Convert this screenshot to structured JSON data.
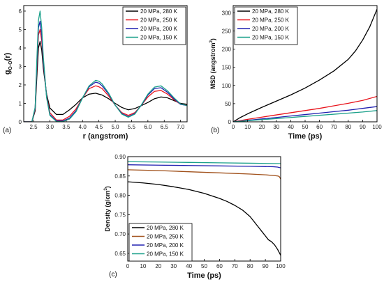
{
  "chart_data": [
    {
      "type": "line",
      "panel_label": "(a)",
      "xlabel": "r (angstrom)",
      "ylabel_main": "g",
      "ylabel_sub": "O-O",
      "ylabel_tail": "(r)",
      "xlim": [
        2.2,
        7.2
      ],
      "ylim": [
        0,
        6.3
      ],
      "xticks": [
        "2.5",
        "3.0",
        "3.5",
        "4.0",
        "4.5",
        "5.0",
        "5.5",
        "6.0",
        "6.5",
        "7.0"
      ],
      "yticks": [
        "0",
        "1",
        "2",
        "3",
        "4",
        "5",
        "6"
      ],
      "legend": "top-right",
      "series": [
        {
          "name": "20 MPa, 280 K",
          "color": "#000000",
          "x": [
            2.2,
            2.45,
            2.55,
            2.6,
            2.65,
            2.7,
            2.75,
            2.8,
            2.9,
            3.0,
            3.2,
            3.4,
            3.6,
            3.8,
            4.0,
            4.2,
            4.4,
            4.5,
            4.6,
            4.8,
            5.0,
            5.2,
            5.4,
            5.6,
            5.8,
            6.0,
            6.2,
            6.4,
            6.6,
            6.8,
            7.0,
            7.2
          ],
          "y": [
            0,
            0,
            0.6,
            2.4,
            4.0,
            4.35,
            3.9,
            2.9,
            1.5,
            0.75,
            0.4,
            0.4,
            0.65,
            0.95,
            1.3,
            1.5,
            1.55,
            1.5,
            1.45,
            1.25,
            1.0,
            0.78,
            0.65,
            0.72,
            0.88,
            1.05,
            1.25,
            1.35,
            1.3,
            1.15,
            1.0,
            0.95
          ]
        },
        {
          "name": "20 MPa, 250 K",
          "color": "#e8141c",
          "x": [
            2.2,
            2.45,
            2.55,
            2.6,
            2.65,
            2.7,
            2.75,
            2.8,
            2.9,
            3.0,
            3.2,
            3.4,
            3.6,
            3.8,
            4.0,
            4.2,
            4.4,
            4.5,
            4.6,
            4.8,
            5.0,
            5.2,
            5.4,
            5.6,
            5.8,
            6.0,
            6.2,
            6.4,
            6.6,
            6.8,
            7.0,
            7.2
          ],
          "y": [
            0,
            0,
            0.7,
            2.9,
            4.7,
            5.0,
            4.4,
            3.2,
            1.4,
            0.5,
            0.1,
            0.1,
            0.3,
            0.7,
            1.3,
            1.8,
            1.95,
            1.9,
            1.8,
            1.4,
            0.9,
            0.5,
            0.35,
            0.5,
            0.9,
            1.35,
            1.65,
            1.7,
            1.5,
            1.2,
            0.95,
            0.9
          ]
        },
        {
          "name": "20 MPa, 200 K",
          "color": "#2020b0",
          "x": [
            2.2,
            2.45,
            2.55,
            2.6,
            2.65,
            2.7,
            2.75,
            2.8,
            2.9,
            3.0,
            3.2,
            3.4,
            3.6,
            3.8,
            4.0,
            4.2,
            4.4,
            4.5,
            4.6,
            4.8,
            5.0,
            5.2,
            5.4,
            5.6,
            5.8,
            6.0,
            6.2,
            6.4,
            6.6,
            6.8,
            7.0,
            7.2
          ],
          "y": [
            0,
            0,
            0.75,
            3.1,
            5.1,
            5.45,
            4.7,
            3.3,
            1.35,
            0.4,
            0.05,
            0.05,
            0.2,
            0.6,
            1.3,
            1.9,
            2.15,
            2.1,
            1.95,
            1.5,
            0.9,
            0.45,
            0.28,
            0.45,
            0.9,
            1.45,
            1.8,
            1.85,
            1.6,
            1.25,
            0.95,
            0.88
          ]
        },
        {
          "name": "20 MPa, 150 K",
          "color": "#1aa08a",
          "x": [
            2.2,
            2.45,
            2.55,
            2.6,
            2.65,
            2.7,
            2.75,
            2.8,
            2.9,
            3.0,
            3.2,
            3.4,
            3.6,
            3.8,
            4.0,
            4.2,
            4.4,
            4.5,
            4.6,
            4.8,
            5.0,
            5.2,
            5.4,
            5.6,
            5.8,
            6.0,
            6.2,
            6.4,
            6.6,
            6.8,
            7.0,
            7.2
          ],
          "y": [
            0,
            0,
            0.8,
            3.3,
            5.5,
            6.0,
            5.1,
            3.5,
            1.3,
            0.35,
            0.02,
            0.02,
            0.15,
            0.55,
            1.3,
            1.95,
            2.25,
            2.2,
            2.05,
            1.55,
            0.9,
            0.42,
            0.25,
            0.42,
            0.92,
            1.5,
            1.88,
            1.95,
            1.68,
            1.3,
            0.97,
            0.88
          ]
        }
      ]
    },
    {
      "type": "line",
      "panel_label": "(b)",
      "xlabel": "Time (ps)",
      "ylabel_main": "MSD (angstrom",
      "ylabel_sup": "2",
      "ylabel_tail": ")",
      "xlim": [
        0,
        100
      ],
      "ylim": [
        0,
        320
      ],
      "xticks": [
        "0",
        "10",
        "20",
        "30",
        "40",
        "50",
        "60",
        "70",
        "80",
        "90",
        "100"
      ],
      "yticks": [
        "0",
        "50",
        "100",
        "150",
        "200",
        "250",
        "300"
      ],
      "legend": "top-left",
      "series": [
        {
          "name": "20 MPa, 280 K",
          "color": "#000000",
          "x": [
            0,
            5,
            10,
            20,
            30,
            40,
            50,
            60,
            70,
            80,
            85,
            90,
            95,
            100
          ],
          "y": [
            0,
            12,
            22,
            40,
            57,
            74,
            93,
            115,
            140,
            172,
            195,
            225,
            262,
            310
          ]
        },
        {
          "name": "20 MPa, 250 K",
          "color": "#e8141c",
          "x": [
            0,
            10,
            20,
            30,
            40,
            50,
            60,
            70,
            80,
            90,
            100
          ],
          "y": [
            0,
            7,
            13,
            19,
            25,
            31,
            37,
            44,
            51,
            59,
            70
          ]
        },
        {
          "name": "20 MPa, 200 K",
          "color": "#2020b0",
          "x": [
            0,
            10,
            20,
            30,
            40,
            50,
            60,
            70,
            80,
            90,
            100
          ],
          "y": [
            0,
            4,
            8,
            12,
            16,
            20,
            24,
            28,
            32,
            37,
            42
          ]
        },
        {
          "name": "20 MPa, 150 K",
          "color": "#1aa08a",
          "x": [
            0,
            10,
            20,
            30,
            40,
            50,
            60,
            70,
            80,
            90,
            100
          ],
          "y": [
            0,
            3,
            6,
            9,
            12,
            15,
            18,
            21,
            24,
            27,
            31
          ]
        }
      ]
    },
    {
      "type": "line",
      "panel_label": "(c)",
      "xlabel": "Time (ps)",
      "ylabel_main": "Density (g/cm",
      "ylabel_sup": "3",
      "ylabel_tail": ")",
      "xlim": [
        0,
        100
      ],
      "ylim": [
        0.63,
        0.9
      ],
      "xticks": [
        "0",
        "10",
        "20",
        "30",
        "40",
        "50",
        "60",
        "70",
        "80",
        "90",
        "100"
      ],
      "yticks": [
        "0.65",
        "0.70",
        "0.75",
        "0.80",
        "0.85",
        "0.90"
      ],
      "yticks_values": [
        0.65,
        0.7,
        0.75,
        0.8,
        0.85,
        0.9
      ],
      "legend": "bottom-left",
      "series": [
        {
          "name": "20 MPa, 280 K",
          "color": "#000000",
          "x": [
            0,
            10,
            20,
            30,
            40,
            50,
            60,
            65,
            70,
            75,
            80,
            85,
            88,
            90,
            92,
            94,
            96,
            98,
            100
          ],
          "y": [
            0.835,
            0.832,
            0.828,
            0.822,
            0.815,
            0.805,
            0.792,
            0.784,
            0.774,
            0.762,
            0.745,
            0.72,
            0.705,
            0.695,
            0.685,
            0.68,
            0.672,
            0.66,
            0.645
          ]
        },
        {
          "name": "20 MPa, 250 K",
          "color": "#a0501a",
          "x": [
            0,
            20,
            40,
            60,
            80,
            90,
            96,
            98,
            99,
            100
          ],
          "y": [
            0.866,
            0.864,
            0.861,
            0.858,
            0.855,
            0.853,
            0.851,
            0.85,
            0.849,
            0.842
          ]
        },
        {
          "name": "20 MPa, 200 K",
          "color": "#2020b0",
          "x": [
            0,
            20,
            40,
            60,
            80,
            95,
            98,
            100
          ],
          "y": [
            0.879,
            0.878,
            0.877,
            0.876,
            0.875,
            0.874,
            0.873,
            0.871
          ]
        },
        {
          "name": "20 MPa, 150 K",
          "color": "#1aa08a",
          "x": [
            0,
            20,
            40,
            60,
            80,
            100
          ],
          "y": [
            0.887,
            0.886,
            0.885,
            0.884,
            0.883,
            0.882
          ]
        }
      ]
    }
  ]
}
